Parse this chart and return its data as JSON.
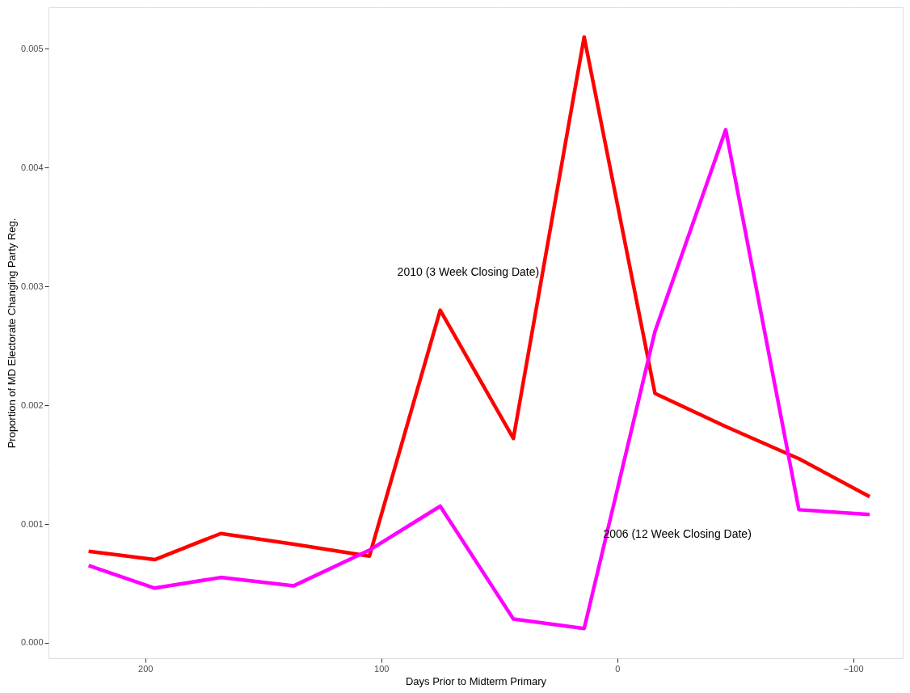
{
  "chart_data": {
    "type": "line",
    "xlabel": "Days Prior to Midterm Primary",
    "ylabel": "Proportion of MD Electorate Changing Party Reg.",
    "x": [
      224,
      196,
      168,
      137,
      105,
      75,
      44,
      14,
      -16,
      -46,
      -77,
      -107
    ],
    "series": [
      {
        "color": "#ff0000",
        "values": [
          0.00077,
          0.0007,
          0.00092,
          0.00083,
          0.00073,
          0.0028,
          0.00172,
          0.0051,
          0.0021,
          0.00182,
          0.00155,
          0.00123
        ]
      },
      {
        "color": "#ff00ff",
        "values": [
          0.00065,
          0.00046,
          0.00055,
          0.00048,
          0.00078,
          0.00115,
          0.0002,
          0.00012,
          0.00262,
          0.00432,
          0.00112,
          0.00108
        ]
      }
    ],
    "annotations": [
      "2010 (3 Week Closing Date)",
      "2006 (12 Week Closing Date)"
    ],
    "xlim": [
      241,
      -121
    ],
    "xticks": [
      200,
      100,
      0,
      -100
    ],
    "ylim": [
      -0.00013,
      0.00535
    ],
    "yticks": [
      {
        "value": 0,
        "label": "0.000"
      },
      {
        "value": 0.001,
        "label": "0.001"
      },
      {
        "value": 0.002,
        "label": "0.002"
      },
      {
        "value": 0.003,
        "label": "0.003"
      },
      {
        "value": 0.004,
        "label": "0.004"
      },
      {
        "value": 0.005,
        "label": "0.005"
      }
    ],
    "grid": true,
    "line_style": "solid"
  }
}
